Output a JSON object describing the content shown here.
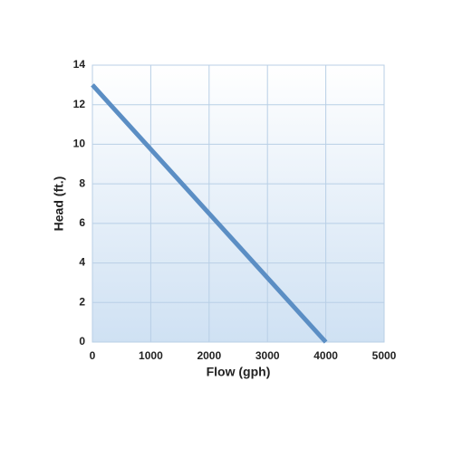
{
  "chart_data": {
    "type": "line",
    "x_label": "Flow (gph)",
    "y_label": "Head (ft.)",
    "x": [
      0,
      4000
    ],
    "series": [
      {
        "color": "#5b8ec4",
        "values": [
          13,
          0
        ]
      }
    ],
    "xlim": [
      0,
      5000
    ],
    "xticks": [
      0,
      1000,
      2000,
      3000,
      4000,
      5000
    ],
    "ylim": [
      0,
      14
    ],
    "yticks": [
      0,
      2,
      4,
      6,
      8,
      10,
      12,
      14
    ],
    "grid": true
  }
}
